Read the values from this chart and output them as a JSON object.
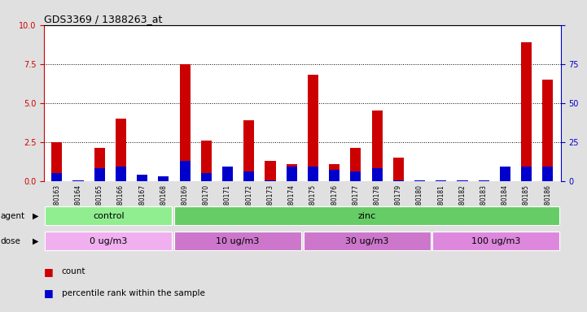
{
  "title": "GDS3369 / 1388263_at",
  "samples": [
    "GSM280163",
    "GSM280164",
    "GSM280165",
    "GSM280166",
    "GSM280167",
    "GSM280168",
    "GSM280169",
    "GSM280170",
    "GSM280171",
    "GSM280172",
    "GSM280173",
    "GSM280174",
    "GSM280175",
    "GSM280176",
    "GSM280177",
    "GSM280178",
    "GSM280179",
    "GSM280180",
    "GSM280181",
    "GSM280182",
    "GSM280183",
    "GSM280184",
    "GSM280185",
    "GSM280186"
  ],
  "count_values": [
    2.5,
    0.05,
    2.1,
    4.0,
    0.05,
    0.05,
    7.5,
    2.6,
    0.5,
    3.9,
    1.3,
    1.1,
    6.8,
    1.1,
    2.1,
    4.5,
    1.5,
    0.05,
    0.05,
    0.05,
    0.05,
    0.2,
    8.9,
    6.5
  ],
  "percentile_values": [
    5,
    0.5,
    8,
    9,
    4,
    3,
    13,
    5,
    9,
    6,
    0.5,
    9,
    9,
    7,
    6,
    8,
    0.5,
    0.5,
    0.5,
    0.5,
    0.5,
    9,
    9,
    9
  ],
  "count_color": "#cc0000",
  "percentile_color": "#0000cc",
  "ylim_left": [
    0,
    10
  ],
  "ylim_right": [
    0,
    100
  ],
  "yticks_left": [
    0,
    2.5,
    5.0,
    7.5,
    10
  ],
  "yticks_right": [
    0,
    25,
    50,
    75,
    100
  ],
  "agent_groups": [
    {
      "label": "control",
      "start": 0,
      "end": 6,
      "color": "#90ee90"
    },
    {
      "label": "zinc",
      "start": 6,
      "end": 24,
      "color": "#66cc66"
    }
  ],
  "dose_groups": [
    {
      "label": "0 ug/m3",
      "start": 0,
      "end": 6,
      "color": "#f0b0f0"
    },
    {
      "label": "10 ug/m3",
      "start": 6,
      "end": 12,
      "color": "#cc77cc"
    },
    {
      "label": "30 ug/m3",
      "start": 12,
      "end": 18,
      "color": "#cc77cc"
    },
    {
      "label": "100 ug/m3",
      "start": 18,
      "end": 24,
      "color": "#dd88dd"
    }
  ],
  "background_color": "#e0e0e0",
  "plot_bg_color": "#ffffff",
  "legend_count_label": "count",
  "legend_percentile_label": "percentile rank within the sample"
}
